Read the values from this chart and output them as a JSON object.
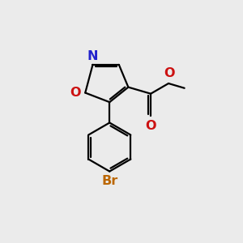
{
  "background_color": "#ebebeb",
  "bond_color": "#000000",
  "N_color": "#2222cc",
  "O_color": "#cc1111",
  "Br_color": "#bb6600",
  "lw": 1.6,
  "font_size": 11.5,
  "xlim": [
    0,
    10
  ],
  "ylim": [
    0,
    10
  ],
  "N": [
    3.3,
    8.1
  ],
  "C3": [
    4.7,
    8.1
  ],
  "C4": [
    5.2,
    6.9
  ],
  "C5": [
    4.2,
    6.1
  ],
  "O1": [
    2.9,
    6.6
  ],
  "Ccarb": [
    6.4,
    6.55
  ],
  "Odbl": [
    6.4,
    5.35
  ],
  "Oester": [
    7.35,
    7.1
  ],
  "CH3end": [
    8.2,
    6.85
  ],
  "phcx": 4.2,
  "phcy": 3.7,
  "phr": 1.3
}
